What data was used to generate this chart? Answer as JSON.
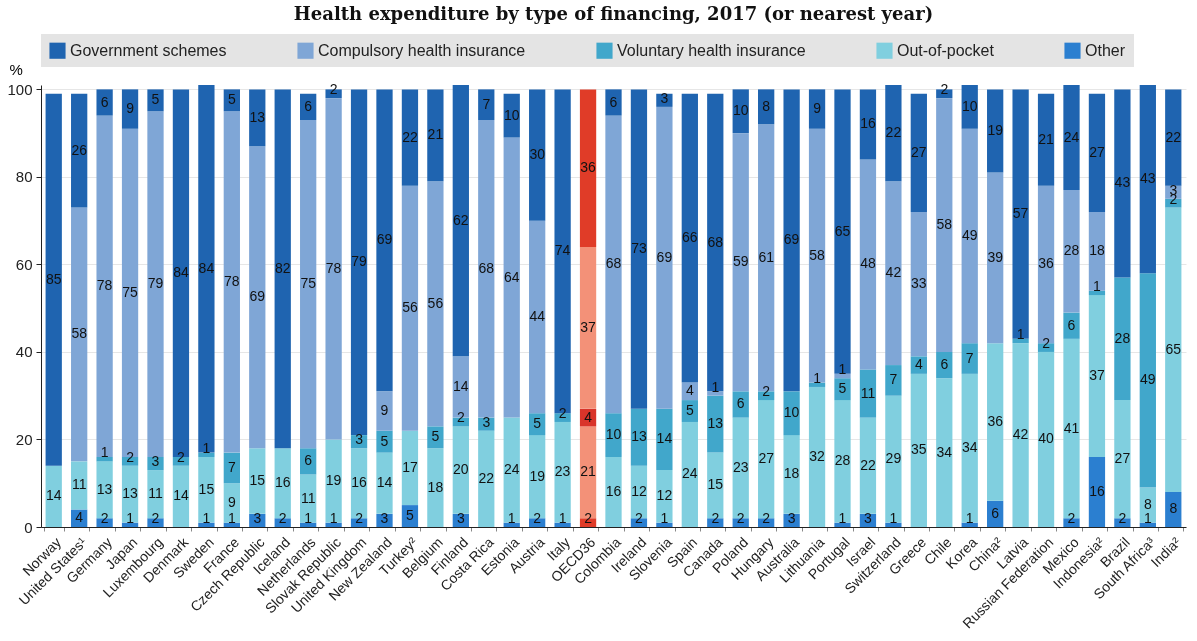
{
  "chart_data": {
    "type": "bar",
    "stacked": true,
    "title": "Health expenditure by type of financing, 2017 (or nearest year)",
    "ylabel": "%",
    "categories": [
      "Norway",
      "United States¹",
      "Germany",
      "Japan",
      "Luxembourg",
      "Denmark",
      "Sweden",
      "France",
      "Czech Republic",
      "Iceland",
      "Netherlands",
      "Slovak Republic",
      "United Kingdom",
      "New Zealand",
      "Turkey²",
      "Belgium",
      "Finland",
      "Costa Rica",
      "Estonia",
      "Austria",
      "Italy",
      "OECD36",
      "Colombia",
      "Ireland",
      "Slovenia",
      "Spain",
      "Canada",
      "Poland",
      "Hungary",
      "Australia",
      "Lithuania",
      "Portugal",
      "Israel",
      "Switzerland",
      "Greece",
      "Chile",
      "Korea",
      "China²",
      "Latvia",
      "Russian Federation",
      "Mexico",
      "Indonesia²",
      "Brazil",
      "South Africa³",
      "India²"
    ],
    "ylim": [
      0,
      101
    ],
    "yticks": [
      0,
      20,
      40,
      60,
      80,
      100
    ],
    "grid": "y",
    "legend": "top",
    "data_labels": true,
    "series": [
      {
        "name": "Other",
        "color": "#2b7fd0",
        "colors": [
          null,
          "#2b7fd0",
          "#2b7fd0",
          "#2b7fd0",
          "#2b7fd0",
          null,
          "#2b7fd0",
          "#2b7fd0",
          "#2b7fd0",
          "#2b7fd0",
          "#2b7fd0",
          "#2b7fd0",
          "#2b7fd0",
          "#2b7fd0",
          "#2b7fd0",
          null,
          "#2b7fd0",
          null,
          "#2b7fd0",
          "#2b7fd0",
          "#2b7fd0",
          "#e03c28",
          null,
          "#2b7fd0",
          "#2b7fd0",
          null,
          "#2b7fd0",
          "#2b7fd0",
          "#2b7fd0",
          "#2b7fd0",
          null,
          "#2b7fd0",
          "#2b7fd0",
          "#2b7fd0",
          null,
          null,
          "#2b7fd0",
          "#2b7fd0",
          null,
          null,
          "#2b7fd0",
          "#2b7fd0",
          "#2b7fd0",
          "#2b7fd0",
          "#2b7fd0"
        ],
        "values": [
          null,
          4,
          2,
          1,
          2,
          null,
          1,
          1,
          3,
          2,
          1,
          1,
          2,
          3,
          5,
          null,
          3,
          null,
          1,
          2,
          1,
          2,
          null,
          2,
          1,
          null,
          2,
          2,
          2,
          3,
          null,
          1,
          3,
          1,
          null,
          null,
          1,
          6,
          null,
          null,
          2,
          16,
          2,
          1,
          8
        ]
      },
      {
        "name": "Out-of-pocket",
        "color": "#80cfdf",
        "colors": [
          "#80cfdf",
          "#80cfdf",
          "#80cfdf",
          "#80cfdf",
          "#80cfdf",
          "#80cfdf",
          "#80cfdf",
          "#80cfdf",
          "#80cfdf",
          "#80cfdf",
          "#80cfdf",
          "#80cfdf",
          "#80cfdf",
          "#80cfdf",
          "#80cfdf",
          "#80cfdf",
          "#80cfdf",
          "#80cfdf",
          "#80cfdf",
          "#80cfdf",
          "#80cfdf",
          "#f39178",
          "#80cfdf",
          "#80cfdf",
          "#80cfdf",
          "#80cfdf",
          "#80cfdf",
          "#80cfdf",
          "#80cfdf",
          "#80cfdf",
          "#80cfdf",
          "#80cfdf",
          "#80cfdf",
          "#80cfdf",
          "#80cfdf",
          "#80cfdf",
          "#80cfdf",
          "#80cfdf",
          "#80cfdf",
          "#80cfdf",
          "#80cfdf",
          "#80cfdf",
          "#80cfdf",
          "#80cfdf",
          "#80cfdf"
        ],
        "values": [
          14,
          11,
          13,
          13,
          11,
          14,
          15,
          9,
          15,
          16,
          11,
          19,
          16,
          14,
          17,
          18,
          20,
          22,
          24,
          19,
          23,
          21,
          16,
          12,
          12,
          24,
          15,
          23,
          27,
          18,
          32,
          28,
          22,
          29,
          35,
          34,
          34,
          36,
          42,
          40,
          41,
          37,
          27,
          8,
          65
        ]
      },
      {
        "name": "Voluntary health insurance",
        "color": "#41a7cb",
        "colors": [
          null,
          null,
          "#41a7cb",
          "#41a7cb",
          "#41a7cb",
          "#41a7cb",
          "#41a7cb",
          "#41a7cb",
          null,
          null,
          "#41a7cb",
          null,
          "#41a7cb",
          "#41a7cb",
          null,
          "#41a7cb",
          "#41a7cb",
          "#41a7cb",
          null,
          "#41a7cb",
          "#41a7cb",
          "#d9342a",
          "#41a7cb",
          "#41a7cb",
          "#41a7cb",
          "#41a7cb",
          "#41a7cb",
          "#41a7cb",
          "#41a7cb",
          "#41a7cb",
          "#41a7cb",
          "#41a7cb",
          "#41a7cb",
          "#41a7cb",
          "#41a7cb",
          "#41a7cb",
          "#41a7cb",
          null,
          "#41a7cb",
          "#41a7cb",
          "#41a7cb",
          "#41a7cb",
          "#41a7cb",
          "#41a7cb",
          "#41a7cb"
        ],
        "values": [
          null,
          null,
          1,
          2,
          3,
          2,
          1,
          7,
          null,
          null,
          6,
          null,
          3,
          5,
          null,
          5,
          2,
          3,
          null,
          5,
          2,
          4,
          10,
          13,
          14,
          5,
          13,
          6,
          2,
          10,
          1,
          5,
          11,
          7,
          4,
          6,
          7,
          null,
          1,
          2,
          6,
          1,
          28,
          49,
          2
        ]
      },
      {
        "name": "Compulsory health insurance",
        "color": "#7fa6d6",
        "colors": [
          null,
          "#7fa6d6",
          "#7fa6d6",
          "#7fa6d6",
          "#7fa6d6",
          null,
          null,
          "#7fa6d6",
          "#7fa6d6",
          null,
          "#7fa6d6",
          "#7fa6d6",
          null,
          "#7fa6d6",
          "#7fa6d6",
          "#7fa6d6",
          "#7fa6d6",
          "#7fa6d6",
          "#7fa6d6",
          "#7fa6d6",
          null,
          "#f39178",
          "#7fa6d6",
          null,
          "#7fa6d6",
          "#7fa6d6",
          "#7fa6d6",
          "#7fa6d6",
          "#7fa6d6",
          null,
          "#7fa6d6",
          "#7fa6d6",
          "#7fa6d6",
          "#7fa6d6",
          "#7fa6d6",
          "#7fa6d6",
          "#7fa6d6",
          "#7fa6d6",
          null,
          "#7fa6d6",
          "#7fa6d6",
          "#7fa6d6",
          null,
          null,
          "#7fa6d6"
        ],
        "values": [
          null,
          58,
          78,
          75,
          79,
          null,
          null,
          78,
          69,
          null,
          75,
          78,
          null,
          9,
          56,
          56,
          14,
          68,
          64,
          44,
          null,
          37,
          68,
          null,
          69,
          4,
          1,
          59,
          61,
          null,
          58,
          1,
          48,
          42,
          33,
          58,
          49,
          39,
          null,
          36,
          28,
          18,
          null,
          null,
          3
        ]
      },
      {
        "name": "Government schemes",
        "color": "#1f64b0",
        "colors": [
          "#1f64b0",
          "#1f64b0",
          "#1f64b0",
          "#1f64b0",
          "#1f64b0",
          "#1f64b0",
          "#1f64b0",
          "#1f64b0",
          "#1f64b0",
          "#1f64b0",
          "#1f64b0",
          "#1f64b0",
          "#1f64b0",
          "#1f64b0",
          "#1f64b0",
          "#1f64b0",
          "#1f64b0",
          "#1f64b0",
          "#1f64b0",
          "#1f64b0",
          "#1f64b0",
          "#e03c28",
          "#1f64b0",
          "#1f64b0",
          "#1f64b0",
          "#1f64b0",
          "#1f64b0",
          "#1f64b0",
          "#1f64b0",
          "#1f64b0",
          "#1f64b0",
          "#1f64b0",
          "#1f64b0",
          "#1f64b0",
          "#1f64b0",
          "#1f64b0",
          "#1f64b0",
          "#1f64b0",
          "#1f64b0",
          "#1f64b0",
          "#1f64b0",
          "#1f64b0",
          "#1f64b0",
          "#1f64b0",
          "#1f64b0"
        ],
        "values": [
          85,
          26,
          6,
          9,
          5,
          84,
          84,
          5,
          13,
          82,
          6,
          2,
          79,
          69,
          22,
          21,
          62,
          7,
          10,
          30,
          74,
          36,
          6,
          73,
          3,
          66,
          68,
          10,
          8,
          69,
          9,
          65,
          16,
          22,
          27,
          2,
          10,
          19,
          57,
          21,
          24,
          27,
          43,
          43,
          22
        ]
      }
    ]
  }
}
